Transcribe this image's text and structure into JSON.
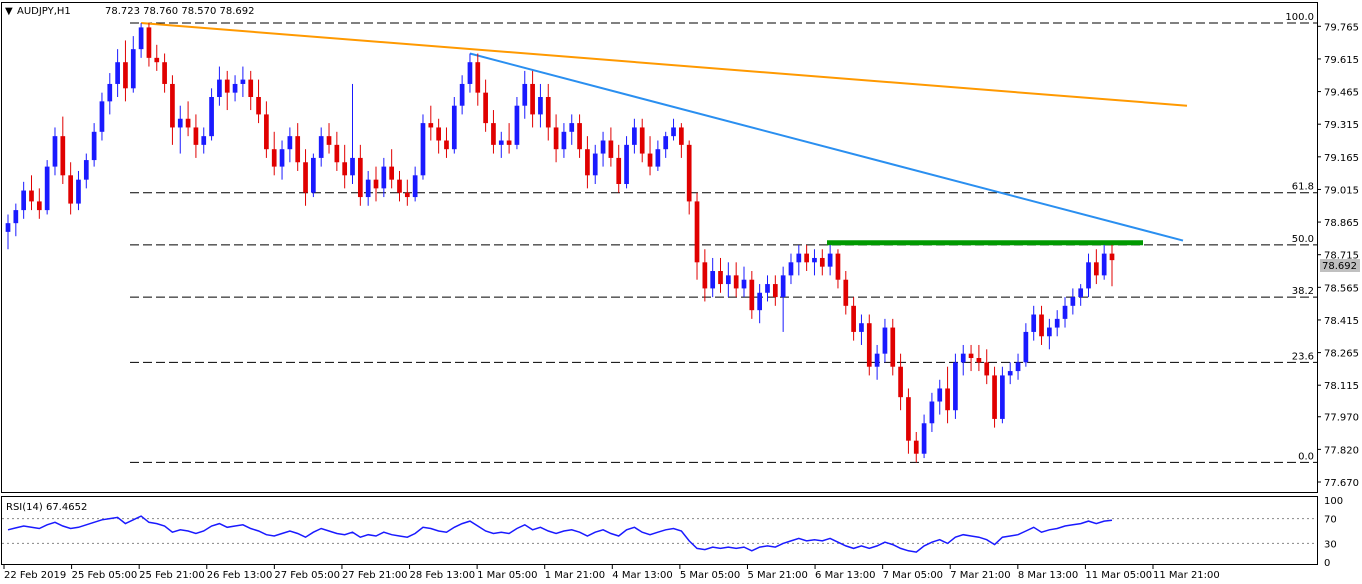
{
  "header": {
    "symbol": "AUDJPY,H1",
    "ohlc": "78.723 78.760 78.570 78.692"
  },
  "rsi_panel": {
    "label": "RSI(14) 67.4652",
    "levels": [
      "100",
      "70",
      "30",
      "0"
    ]
  },
  "price_axis": {
    "ticks": [
      "79.765",
      "79.615",
      "79.465",
      "79.315",
      "79.165",
      "79.015",
      "78.865",
      "78.715",
      "78.565",
      "78.415",
      "78.265",
      "78.115",
      "77.970",
      "77.820",
      "77.670"
    ],
    "current_price": "78.692"
  },
  "time_axis": {
    "labels": [
      "22 Feb 2019",
      "25 Feb 05:00",
      "25 Feb 21:00",
      "26 Feb 13:00",
      "27 Feb 05:00",
      "27 Feb 21:00",
      "28 Feb 13:00",
      "1 Mar 05:00",
      "1 Mar 21:00",
      "4 Mar 13:00",
      "5 Mar 05:00",
      "5 Mar 21:00",
      "6 Mar 13:00",
      "7 Mar 05:00",
      "7 Mar 21:00",
      "8 Mar 13:00",
      "11 Mar 05:00",
      "11 Mar 21:00"
    ]
  },
  "fibonacci": {
    "levels": [
      {
        "label": "100.0",
        "price": 79.78
      },
      {
        "label": "61.8",
        "price": 79.0
      },
      {
        "label": "50.0",
        "price": 78.76
      },
      {
        "label": "38.2",
        "price": 78.52
      },
      {
        "label": "23.6",
        "price": 78.22
      },
      {
        "label": "0.0",
        "price": 77.76
      }
    ]
  },
  "colors": {
    "bull": "#1a1aff",
    "bear": "#e00000",
    "rsi_line": "#1a1aff",
    "trend_orange": "#ff9900",
    "trend_blue": "#2a8ff0",
    "resistance_green": "#009900",
    "price_tag_bg": "#c0c0c0"
  },
  "chart_data": {
    "type": "candlestick",
    "title": "AUDJPY,H1",
    "ylim": [
      77.67,
      79.84
    ],
    "rsi_ylim": [
      0,
      100
    ],
    "candles": [
      {
        "o": 78.82,
        "h": 78.9,
        "l": 78.74,
        "c": 78.86
      },
      {
        "o": 78.86,
        "h": 78.95,
        "l": 78.8,
        "c": 78.92
      },
      {
        "o": 78.92,
        "h": 79.05,
        "l": 78.88,
        "c": 79.01
      },
      {
        "o": 79.01,
        "h": 79.08,
        "l": 78.92,
        "c": 78.96
      },
      {
        "o": 78.96,
        "h": 79.02,
        "l": 78.88,
        "c": 78.92
      },
      {
        "o": 78.92,
        "h": 79.15,
        "l": 78.9,
        "c": 79.12
      },
      {
        "o": 79.12,
        "h": 79.3,
        "l": 79.08,
        "c": 79.26
      },
      {
        "o": 79.26,
        "h": 79.35,
        "l": 79.04,
        "c": 79.08
      },
      {
        "o": 79.08,
        "h": 79.14,
        "l": 78.9,
        "c": 78.95
      },
      {
        "o": 78.95,
        "h": 79.1,
        "l": 78.92,
        "c": 79.06
      },
      {
        "o": 79.06,
        "h": 79.18,
        "l": 79.02,
        "c": 79.15
      },
      {
        "o": 79.15,
        "h": 79.32,
        "l": 79.12,
        "c": 79.28
      },
      {
        "o": 79.28,
        "h": 79.46,
        "l": 79.24,
        "c": 79.42
      },
      {
        "o": 79.42,
        "h": 79.55,
        "l": 79.36,
        "c": 79.5
      },
      {
        "o": 79.5,
        "h": 79.66,
        "l": 79.44,
        "c": 79.6
      },
      {
        "o": 79.6,
        "h": 79.7,
        "l": 79.42,
        "c": 79.48
      },
      {
        "o": 79.48,
        "h": 79.72,
        "l": 79.46,
        "c": 79.66
      },
      {
        "o": 79.66,
        "h": 79.78,
        "l": 79.62,
        "c": 79.76
      },
      {
        "o": 79.76,
        "h": 79.78,
        "l": 79.58,
        "c": 79.62
      },
      {
        "o": 79.62,
        "h": 79.68,
        "l": 79.56,
        "c": 79.6
      },
      {
        "o": 79.6,
        "h": 79.64,
        "l": 79.46,
        "c": 79.5
      },
      {
        "o": 79.5,
        "h": 79.54,
        "l": 79.22,
        "c": 79.3
      },
      {
        "o": 79.3,
        "h": 79.4,
        "l": 79.18,
        "c": 79.34
      },
      {
        "o": 79.34,
        "h": 79.42,
        "l": 79.26,
        "c": 79.3
      },
      {
        "o": 79.3,
        "h": 79.36,
        "l": 79.16,
        "c": 79.22
      },
      {
        "o": 79.22,
        "h": 79.3,
        "l": 79.18,
        "c": 79.26
      },
      {
        "o": 79.26,
        "h": 79.48,
        "l": 79.24,
        "c": 79.44
      },
      {
        "o": 79.44,
        "h": 79.58,
        "l": 79.4,
        "c": 79.52
      },
      {
        "o": 79.52,
        "h": 79.56,
        "l": 79.38,
        "c": 79.46
      },
      {
        "o": 79.46,
        "h": 79.54,
        "l": 79.42,
        "c": 79.5
      },
      {
        "o": 79.5,
        "h": 79.58,
        "l": 79.44,
        "c": 79.52
      },
      {
        "o": 79.52,
        "h": 79.56,
        "l": 79.38,
        "c": 79.44
      },
      {
        "o": 79.44,
        "h": 79.52,
        "l": 79.32,
        "c": 79.36
      },
      {
        "o": 79.36,
        "h": 79.42,
        "l": 79.16,
        "c": 79.2
      },
      {
        "o": 79.2,
        "h": 79.28,
        "l": 79.08,
        "c": 79.12
      },
      {
        "o": 79.12,
        "h": 79.24,
        "l": 79.06,
        "c": 79.2
      },
      {
        "o": 79.2,
        "h": 79.3,
        "l": 79.14,
        "c": 79.26
      },
      {
        "o": 79.26,
        "h": 79.32,
        "l": 79.1,
        "c": 79.14
      },
      {
        "o": 79.14,
        "h": 79.2,
        "l": 78.94,
        "c": 79.0
      },
      {
        "o": 79.0,
        "h": 79.18,
        "l": 78.98,
        "c": 79.16
      },
      {
        "o": 79.16,
        "h": 79.3,
        "l": 79.12,
        "c": 79.26
      },
      {
        "o": 79.26,
        "h": 79.32,
        "l": 79.18,
        "c": 79.22
      },
      {
        "o": 79.22,
        "h": 79.28,
        "l": 79.1,
        "c": 79.14
      },
      {
        "o": 79.14,
        "h": 79.22,
        "l": 79.02,
        "c": 79.08
      },
      {
        "o": 79.08,
        "h": 79.5,
        "l": 79.04,
        "c": 79.16
      },
      {
        "o": 79.16,
        "h": 79.22,
        "l": 78.94,
        "c": 78.98
      },
      {
        "o": 78.98,
        "h": 79.1,
        "l": 78.94,
        "c": 79.06
      },
      {
        "o": 79.06,
        "h": 79.12,
        "l": 78.96,
        "c": 79.02
      },
      {
        "o": 79.02,
        "h": 79.16,
        "l": 78.98,
        "c": 79.12
      },
      {
        "o": 79.12,
        "h": 79.2,
        "l": 79.02,
        "c": 79.06
      },
      {
        "o": 79.06,
        "h": 79.1,
        "l": 78.96,
        "c": 79.0
      },
      {
        "o": 79.0,
        "h": 79.06,
        "l": 78.94,
        "c": 78.98
      },
      {
        "o": 78.98,
        "h": 79.12,
        "l": 78.96,
        "c": 79.08
      },
      {
        "o": 79.08,
        "h": 79.36,
        "l": 79.06,
        "c": 79.32
      },
      {
        "o": 79.32,
        "h": 79.4,
        "l": 79.24,
        "c": 79.3
      },
      {
        "o": 79.3,
        "h": 79.34,
        "l": 79.18,
        "c": 79.24
      },
      {
        "o": 79.24,
        "h": 79.3,
        "l": 79.16,
        "c": 79.2
      },
      {
        "o": 79.2,
        "h": 79.44,
        "l": 79.18,
        "c": 79.4
      },
      {
        "o": 79.4,
        "h": 79.54,
        "l": 79.36,
        "c": 79.5
      },
      {
        "o": 79.5,
        "h": 79.64,
        "l": 79.46,
        "c": 79.6
      },
      {
        "o": 79.6,
        "h": 79.64,
        "l": 79.4,
        "c": 79.46
      },
      {
        "o": 79.46,
        "h": 79.52,
        "l": 79.28,
        "c": 79.32
      },
      {
        "o": 79.32,
        "h": 79.38,
        "l": 79.18,
        "c": 79.22
      },
      {
        "o": 79.22,
        "h": 79.28,
        "l": 79.16,
        "c": 79.24
      },
      {
        "o": 79.24,
        "h": 79.32,
        "l": 79.18,
        "c": 79.22
      },
      {
        "o": 79.22,
        "h": 79.44,
        "l": 79.2,
        "c": 79.4
      },
      {
        "o": 79.4,
        "h": 79.56,
        "l": 79.34,
        "c": 79.5
      },
      {
        "o": 79.5,
        "h": 79.56,
        "l": 79.3,
        "c": 79.36
      },
      {
        "o": 79.36,
        "h": 79.5,
        "l": 79.3,
        "c": 79.44
      },
      {
        "o": 79.44,
        "h": 79.5,
        "l": 79.24,
        "c": 79.3
      },
      {
        "o": 79.3,
        "h": 79.36,
        "l": 79.14,
        "c": 79.2
      },
      {
        "o": 79.2,
        "h": 79.32,
        "l": 79.16,
        "c": 79.28
      },
      {
        "o": 79.28,
        "h": 79.36,
        "l": 79.22,
        "c": 79.32
      },
      {
        "o": 79.32,
        "h": 79.36,
        "l": 79.16,
        "c": 79.2
      },
      {
        "o": 79.2,
        "h": 79.26,
        "l": 79.02,
        "c": 79.08
      },
      {
        "o": 79.08,
        "h": 79.22,
        "l": 79.04,
        "c": 79.18
      },
      {
        "o": 79.18,
        "h": 79.28,
        "l": 79.12,
        "c": 79.24
      },
      {
        "o": 79.24,
        "h": 79.3,
        "l": 79.12,
        "c": 79.16
      },
      {
        "o": 79.16,
        "h": 79.22,
        "l": 79.0,
        "c": 79.04
      },
      {
        "o": 79.04,
        "h": 79.26,
        "l": 79.02,
        "c": 79.22
      },
      {
        "o": 79.22,
        "h": 79.34,
        "l": 79.18,
        "c": 79.3
      },
      {
        "o": 79.3,
        "h": 79.34,
        "l": 79.14,
        "c": 79.18
      },
      {
        "o": 79.18,
        "h": 79.26,
        "l": 79.08,
        "c": 79.12
      },
      {
        "o": 79.12,
        "h": 79.24,
        "l": 79.1,
        "c": 79.2
      },
      {
        "o": 79.2,
        "h": 79.28,
        "l": 79.16,
        "c": 79.26
      },
      {
        "o": 79.26,
        "h": 79.34,
        "l": 79.24,
        "c": 79.3
      },
      {
        "o": 79.3,
        "h": 79.32,
        "l": 79.16,
        "c": 79.22
      },
      {
        "o": 79.22,
        "h": 79.24,
        "l": 78.9,
        "c": 78.96
      },
      {
        "o": 78.96,
        "h": 79.0,
        "l": 78.6,
        "c": 78.68
      },
      {
        "o": 78.68,
        "h": 78.74,
        "l": 78.5,
        "c": 78.56
      },
      {
        "o": 78.56,
        "h": 78.7,
        "l": 78.52,
        "c": 78.64
      },
      {
        "o": 78.64,
        "h": 78.7,
        "l": 78.54,
        "c": 78.58
      },
      {
        "o": 78.58,
        "h": 78.68,
        "l": 78.52,
        "c": 78.62
      },
      {
        "o": 78.62,
        "h": 78.68,
        "l": 78.52,
        "c": 78.56
      },
      {
        "o": 78.56,
        "h": 78.66,
        "l": 78.52,
        "c": 78.6
      },
      {
        "o": 78.6,
        "h": 78.64,
        "l": 78.42,
        "c": 78.46
      },
      {
        "o": 78.46,
        "h": 78.58,
        "l": 78.4,
        "c": 78.54
      },
      {
        "o": 78.54,
        "h": 78.62,
        "l": 78.5,
        "c": 78.58
      },
      {
        "o": 78.58,
        "h": 78.62,
        "l": 78.48,
        "c": 78.52
      },
      {
        "o": 78.52,
        "h": 78.66,
        "l": 78.36,
        "c": 78.62
      },
      {
        "o": 78.62,
        "h": 78.72,
        "l": 78.58,
        "c": 78.68
      },
      {
        "o": 78.68,
        "h": 78.76,
        "l": 78.62,
        "c": 78.72
      },
      {
        "o": 78.72,
        "h": 78.76,
        "l": 78.64,
        "c": 78.68
      },
      {
        "o": 78.68,
        "h": 78.74,
        "l": 78.62,
        "c": 78.7
      },
      {
        "o": 78.7,
        "h": 78.74,
        "l": 78.62,
        "c": 78.66
      },
      {
        "o": 78.66,
        "h": 78.76,
        "l": 78.62,
        "c": 78.72
      },
      {
        "o": 78.72,
        "h": 78.74,
        "l": 78.56,
        "c": 78.6
      },
      {
        "o": 78.6,
        "h": 78.64,
        "l": 78.44,
        "c": 78.48
      },
      {
        "o": 78.48,
        "h": 78.52,
        "l": 78.32,
        "c": 78.36
      },
      {
        "o": 78.36,
        "h": 78.44,
        "l": 78.3,
        "c": 78.4
      },
      {
        "o": 78.4,
        "h": 78.44,
        "l": 78.16,
        "c": 78.2
      },
      {
        "o": 78.2,
        "h": 78.3,
        "l": 78.14,
        "c": 78.26
      },
      {
        "o": 78.26,
        "h": 78.42,
        "l": 78.22,
        "c": 78.38
      },
      {
        "o": 78.38,
        "h": 78.42,
        "l": 78.16,
        "c": 78.2
      },
      {
        "o": 78.2,
        "h": 78.26,
        "l": 78.0,
        "c": 78.06
      },
      {
        "o": 78.06,
        "h": 78.1,
        "l": 77.8,
        "c": 77.86
      },
      {
        "o": 77.86,
        "h": 77.9,
        "l": 77.76,
        "c": 77.8
      },
      {
        "o": 77.8,
        "h": 77.98,
        "l": 77.78,
        "c": 77.94
      },
      {
        "o": 77.94,
        "h": 78.08,
        "l": 77.9,
        "c": 78.04
      },
      {
        "o": 78.04,
        "h": 78.14,
        "l": 77.98,
        "c": 78.1
      },
      {
        "o": 78.1,
        "h": 78.2,
        "l": 77.94,
        "c": 78.0
      },
      {
        "o": 78.0,
        "h": 78.26,
        "l": 77.96,
        "c": 78.22
      },
      {
        "o": 78.22,
        "h": 78.3,
        "l": 78.16,
        "c": 78.26
      },
      {
        "o": 78.26,
        "h": 78.3,
        "l": 78.18,
        "c": 78.24
      },
      {
        "o": 78.24,
        "h": 78.3,
        "l": 78.18,
        "c": 78.22
      },
      {
        "o": 78.22,
        "h": 78.28,
        "l": 78.12,
        "c": 78.16
      },
      {
        "o": 78.16,
        "h": 78.2,
        "l": 77.92,
        "c": 77.96
      },
      {
        "o": 77.96,
        "h": 78.2,
        "l": 77.94,
        "c": 78.16
      },
      {
        "o": 78.16,
        "h": 78.22,
        "l": 78.12,
        "c": 78.18
      },
      {
        "o": 78.18,
        "h": 78.26,
        "l": 78.14,
        "c": 78.22
      },
      {
        "o": 78.22,
        "h": 78.4,
        "l": 78.2,
        "c": 78.36
      },
      {
        "o": 78.36,
        "h": 78.48,
        "l": 78.32,
        "c": 78.44
      },
      {
        "o": 78.44,
        "h": 78.48,
        "l": 78.3,
        "c": 78.34
      },
      {
        "o": 78.34,
        "h": 78.42,
        "l": 78.28,
        "c": 78.38
      },
      {
        "o": 78.38,
        "h": 78.46,
        "l": 78.34,
        "c": 78.42
      },
      {
        "o": 78.42,
        "h": 78.52,
        "l": 78.38,
        "c": 78.48
      },
      {
        "o": 78.48,
        "h": 78.56,
        "l": 78.44,
        "c": 78.52
      },
      {
        "o": 78.52,
        "h": 78.58,
        "l": 78.48,
        "c": 78.56
      },
      {
        "o": 78.56,
        "h": 78.72,
        "l": 78.52,
        "c": 78.68
      },
      {
        "o": 78.68,
        "h": 78.74,
        "l": 78.58,
        "c": 78.62
      },
      {
        "o": 78.62,
        "h": 78.76,
        "l": 78.6,
        "c": 78.72
      },
      {
        "o": 78.72,
        "h": 78.76,
        "l": 78.57,
        "c": 78.69
      }
    ],
    "rsi": [
      52,
      55,
      58,
      56,
      54,
      60,
      64,
      58,
      54,
      56,
      60,
      64,
      68,
      70,
      72,
      62,
      68,
      74,
      64,
      62,
      58,
      48,
      52,
      50,
      46,
      50,
      58,
      62,
      56,
      58,
      60,
      54,
      50,
      44,
      42,
      46,
      50,
      46,
      40,
      48,
      54,
      50,
      46,
      44,
      48,
      40,
      44,
      42,
      48,
      44,
      42,
      40,
      46,
      56,
      54,
      50,
      48,
      56,
      62,
      66,
      58,
      50,
      46,
      48,
      46,
      54,
      60,
      52,
      56,
      50,
      46,
      50,
      52,
      48,
      42,
      48,
      52,
      46,
      42,
      52,
      56,
      48,
      44,
      48,
      52,
      54,
      50,
      34,
      22,
      20,
      24,
      22,
      24,
      22,
      24,
      18,
      24,
      26,
      24,
      30,
      34,
      38,
      34,
      36,
      34,
      38,
      32,
      26,
      22,
      26,
      22,
      26,
      32,
      28,
      22,
      18,
      16,
      26,
      32,
      36,
      30,
      40,
      44,
      42,
      40,
      36,
      28,
      40,
      42,
      44,
      50,
      56,
      48,
      52,
      54,
      58,
      60,
      62,
      66,
      62,
      66,
      67.47
    ],
    "fib_levels": [
      {
        "label": "100.0",
        "price": 79.78
      },
      {
        "label": "61.8",
        "price": 79.0
      },
      {
        "label": "50.0",
        "price": 78.76
      },
      {
        "label": "38.2",
        "price": 78.52
      },
      {
        "label": "23.6",
        "price": 78.22
      },
      {
        "label": "0.0",
        "price": 77.76
      }
    ]
  }
}
